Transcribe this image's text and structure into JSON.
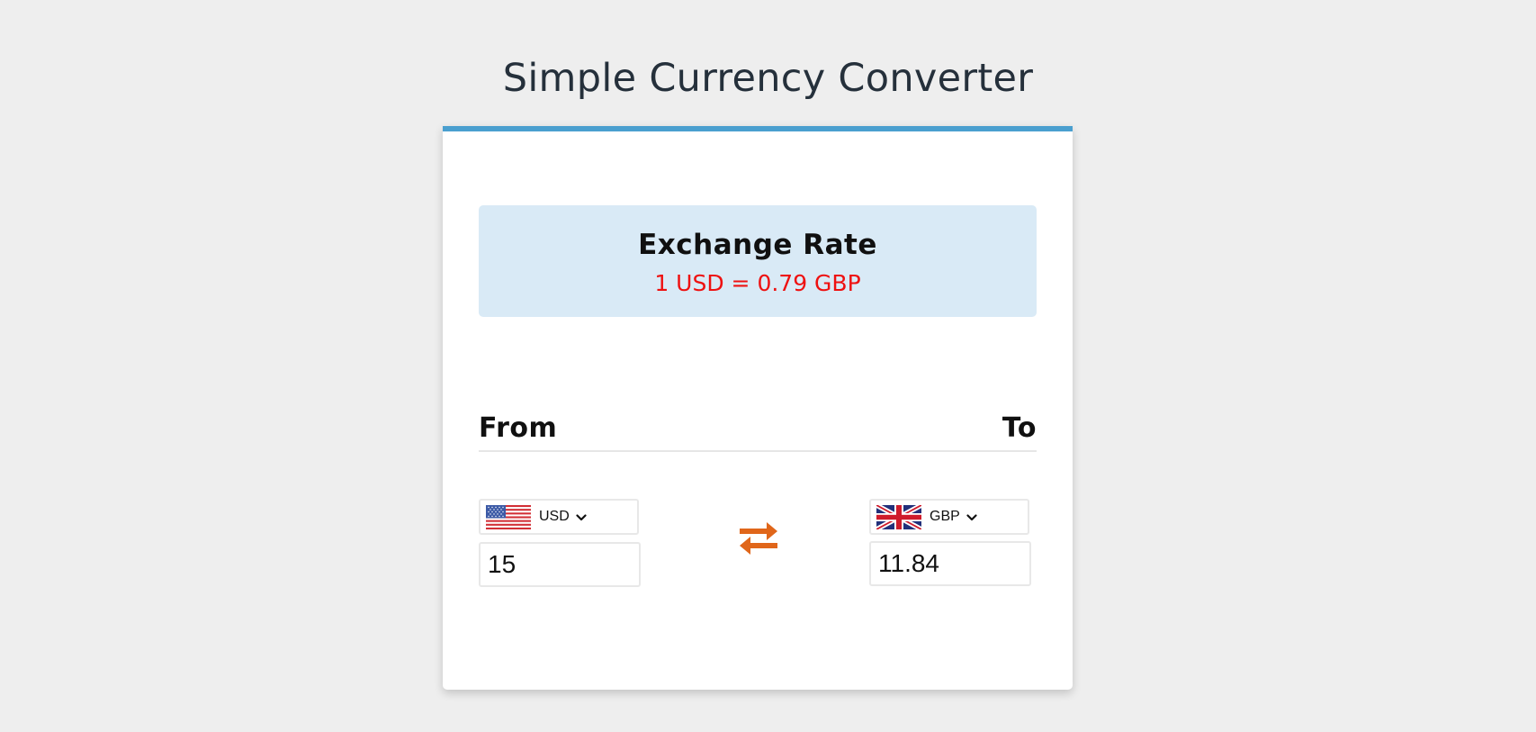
{
  "header": {
    "title": "Simple Currency Converter"
  },
  "exchange_rate": {
    "title": "Exchange Rate",
    "value": "1 USD = 0.79 GBP",
    "value_color": "#ee1111",
    "box_color": "#d9eaf6"
  },
  "labels": {
    "from": "From",
    "to": "To"
  },
  "from_currency": {
    "flag_icon": "us-flag-icon",
    "code": "USD",
    "amount": "15"
  },
  "to_currency": {
    "flag_icon": "uk-flag-icon",
    "code": "GBP",
    "amount": "11.84"
  },
  "swap": {
    "icon": "swap-arrows-icon",
    "color": "#e0661a"
  },
  "accent_color": "#4a9fcf"
}
